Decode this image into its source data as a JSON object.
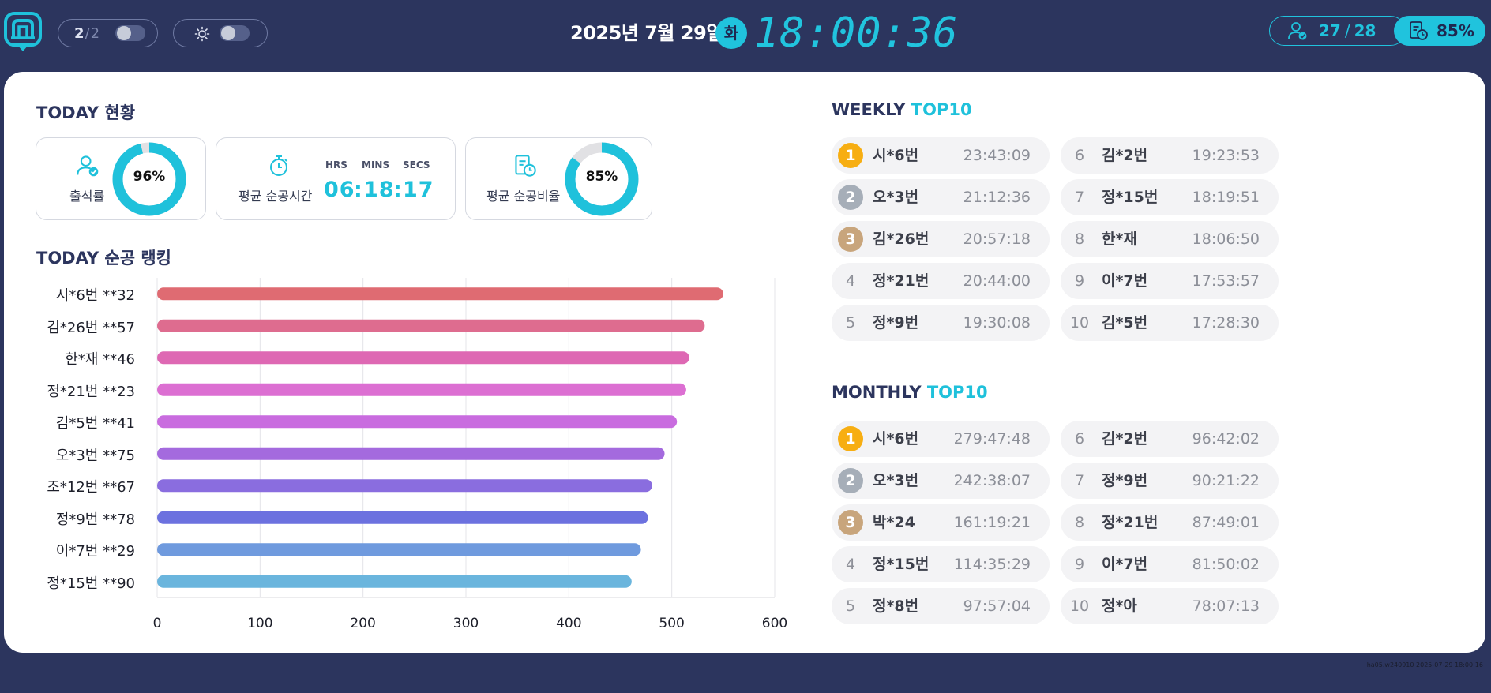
{
  "header": {
    "logo_icon": "logo-icon",
    "page": {
      "current": "2",
      "separator": "/",
      "total": "2"
    },
    "brightness_icon": "sun-icon",
    "date": "2025년 7월 29일",
    "day_of_week": "화",
    "clock": "18:00:36",
    "attendance": {
      "icon": "user-check-icon",
      "present": "27",
      "separator": "/",
      "total": "28"
    },
    "ratio": {
      "icon": "clipboard-clock-icon",
      "value": "85%"
    }
  },
  "colors": {
    "accent": "#1fc1db",
    "navy": "#2c355e",
    "gold": "#f7ae12",
    "silver": "#a6aeb8",
    "bronze": "#c8a57c"
  },
  "today": {
    "title": "TODAY 현황",
    "attendance_rate": {
      "label": "출석률",
      "value": "96%",
      "fraction": 0.96,
      "icon": "user-check-icon"
    },
    "avg_time": {
      "label": "평균 순공시간",
      "icon": "stopwatch-icon",
      "hrs_label": "HRS",
      "mins_label": "MINS",
      "secs_label": "SECS",
      "hours": "06",
      "minutes": "18",
      "seconds": "17",
      "sep": ":"
    },
    "avg_ratio": {
      "label": "평균 순공비율",
      "value": "85%",
      "fraction": 0.85,
      "icon": "clipboard-clock-icon"
    }
  },
  "ranking": {
    "title": "TODAY 순공 랭킹"
  },
  "chart_data": {
    "type": "bar",
    "orientation": "horizontal",
    "title": "TODAY 순공 랭킹",
    "categories": [
      "시*6번 **32",
      "김*26번 **57",
      "한*재 **46",
      "정*21번 **23",
      "김*5번 **41",
      "오*3번 **75",
      "조*12번 **67",
      "정*9번 **78",
      "이*7번 **29",
      "정*15번 **90"
    ],
    "values": [
      550,
      532,
      517,
      514,
      505,
      493,
      481,
      477,
      470,
      461
    ],
    "colors": [
      "#df6b72",
      "#de6c8f",
      "#de68b3",
      "#dc6fd2",
      "#c96cdf",
      "#a46ade",
      "#8a6ddf",
      "#6c71df",
      "#6f9ade",
      "#6ab5dd"
    ],
    "xlim": [
      0,
      600
    ],
    "xticks": [
      "0",
      "100",
      "200",
      "300",
      "400",
      "500",
      "600"
    ],
    "grid": true
  },
  "weekly": {
    "title_plain": "WEEKLY",
    "title_accent": "TOP10",
    "items": [
      {
        "rank": "1",
        "name": "시*6번",
        "time": "23:43:09"
      },
      {
        "rank": "2",
        "name": "오*3번",
        "time": "21:12:36"
      },
      {
        "rank": "3",
        "name": "김*26번",
        "time": "20:57:18"
      },
      {
        "rank": "4",
        "name": "정*21번",
        "time": "20:44:00"
      },
      {
        "rank": "5",
        "name": "정*9번",
        "time": "19:30:08"
      },
      {
        "rank": "6",
        "name": "김*2번",
        "time": "19:23:53"
      },
      {
        "rank": "7",
        "name": "정*15번",
        "time": "18:19:51"
      },
      {
        "rank": "8",
        "name": "한*재",
        "time": "18:06:50"
      },
      {
        "rank": "9",
        "name": "이*7번",
        "time": "17:53:57"
      },
      {
        "rank": "10",
        "name": "김*5번",
        "time": "17:28:30"
      }
    ]
  },
  "monthly": {
    "title_plain": "MONTHLY",
    "title_accent": "TOP10",
    "items": [
      {
        "rank": "1",
        "name": "시*6번",
        "time": "279:47:48"
      },
      {
        "rank": "2",
        "name": "오*3번",
        "time": "242:38:07"
      },
      {
        "rank": "3",
        "name": "박*24",
        "time": "161:19:21"
      },
      {
        "rank": "4",
        "name": "정*15번",
        "time": "114:35:29"
      },
      {
        "rank": "5",
        "name": "정*8번",
        "time": "97:57:04"
      },
      {
        "rank": "6",
        "name": "김*2번",
        "time": "96:42:02"
      },
      {
        "rank": "7",
        "name": "정*9번",
        "time": "90:21:22"
      },
      {
        "rank": "8",
        "name": "정*21번",
        "time": "87:49:01"
      },
      {
        "rank": "9",
        "name": "이*7번",
        "time": "81:50:02"
      },
      {
        "rank": "10",
        "name": "정*아",
        "time": "78:07:13"
      }
    ]
  },
  "footer": {
    "meta": "ha05.w240910    2025-07-29 18:00:16"
  }
}
